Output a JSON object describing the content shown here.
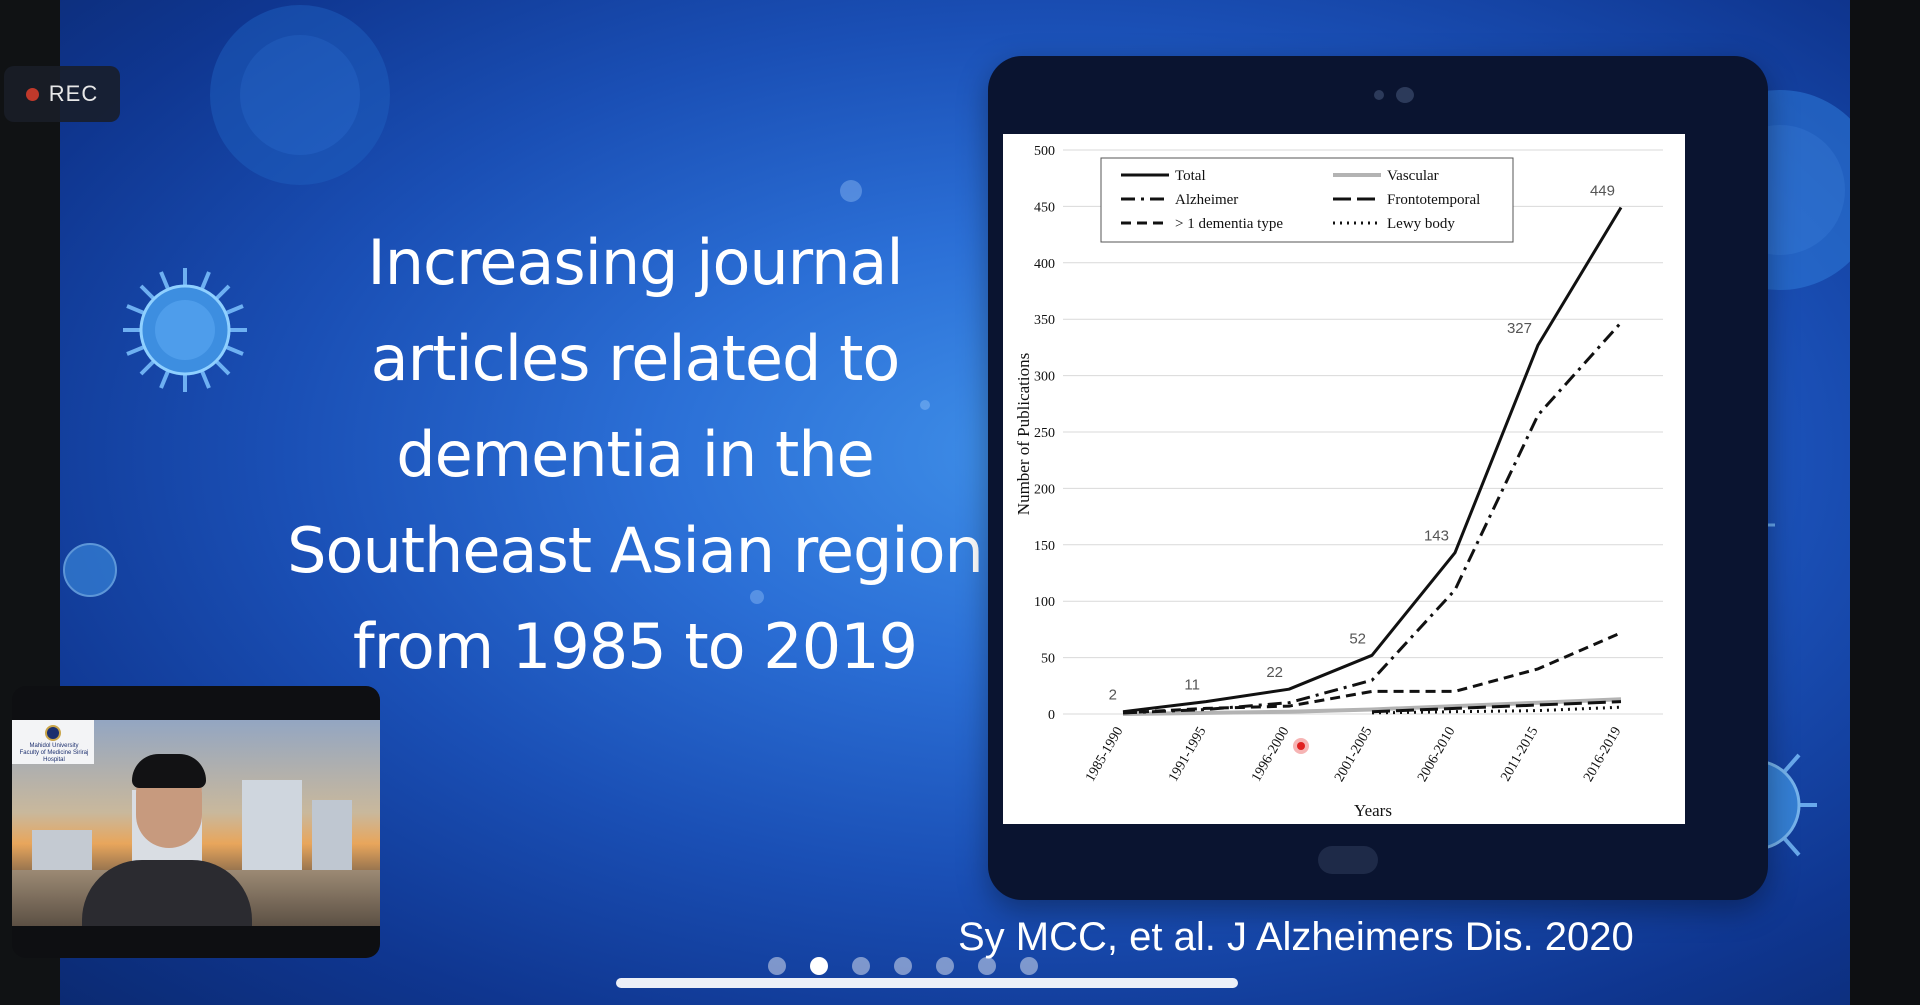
{
  "recording": {
    "label": "REC"
  },
  "slide": {
    "title_lines": [
      "Increasing journal",
      "articles related to",
      "dementia in the",
      "Southeast Asian region",
      "from 1985 to 2019"
    ],
    "citation": "Sy MCC, et al. J Alzheimers Dis. 2020"
  },
  "pager": {
    "count": 7,
    "active_index": 1
  },
  "video": {
    "logo_text": "Mahidol University\nFaculty of Medicine Siriraj Hospital"
  },
  "colors": {
    "slide_blue": "#2b6fd6",
    "tablet_bezel": "#0a1430",
    "rec_dot": "#c0392b"
  },
  "chart_data": {
    "type": "line",
    "categories": [
      "1985-1990",
      "1991-1995",
      "1996-2000",
      "2001-2005",
      "2006-2010",
      "2011-2015",
      "2016-2019"
    ],
    "xlabel": "Years",
    "ylabel": "Number of Publications",
    "ylim": [
      0,
      500
    ],
    "yticks": [
      0,
      50,
      100,
      150,
      200,
      250,
      300,
      350,
      400,
      450,
      500
    ],
    "grid": true,
    "legend": "top-left",
    "series": [
      {
        "name": "Total",
        "style": "solid",
        "color": "#111111",
        "values": [
          2,
          11,
          22,
          52,
          143,
          327,
          449
        ],
        "labels": [
          "2",
          "11",
          "22",
          "52",
          "143",
          "327",
          "449"
        ]
      },
      {
        "name": "Alzheimer",
        "style": "dashdot",
        "color": "#111111",
        "values": [
          1,
          4,
          10,
          30,
          110,
          265,
          347
        ]
      },
      {
        "name": "> 1 dementia type",
        "style": "dashed",
        "color": "#111111",
        "values": [
          1,
          5,
          7,
          20,
          20,
          40,
          72
        ]
      },
      {
        "name": "Vascular",
        "style": "solid",
        "color": "#b3b3b3",
        "values": [
          0,
          1,
          2,
          4,
          7,
          10,
          13
        ]
      },
      {
        "name": "Frontotemporal",
        "style": "longdash",
        "color": "#111111",
        "values": [
          null,
          null,
          null,
          2,
          5,
          8,
          11
        ]
      },
      {
        "name": "Lewy body",
        "style": "dotted",
        "color": "#111111",
        "values": [
          null,
          null,
          null,
          1,
          2,
          3,
          6
        ]
      }
    ]
  }
}
